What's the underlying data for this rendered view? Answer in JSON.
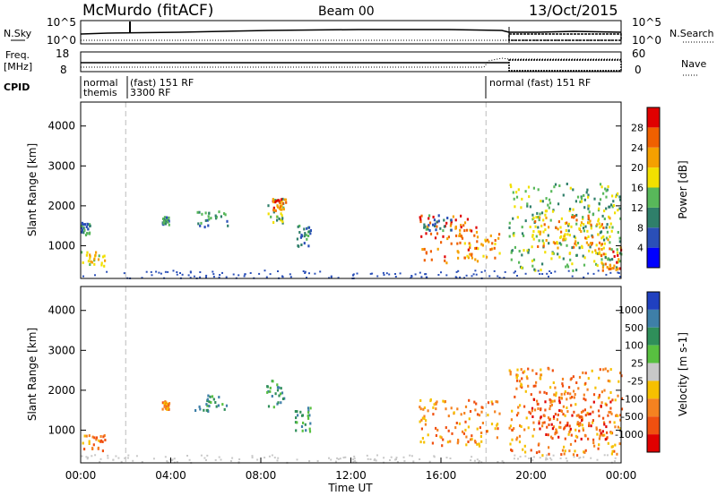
{
  "header": {
    "station": "McMurdo (fitACF)",
    "beam": "Beam 00",
    "date": "13/Oct/2015"
  },
  "left_labels": {
    "nsky": "N.Sky",
    "freq_line1": "Freq.",
    "freq_line2": "[MHz]",
    "cpid": "CPID"
  },
  "right_labels": {
    "nsearch": "N.Search",
    "nave": "Nave"
  },
  "noise_axis": {
    "left_top": "10^5",
    "left_bottom": "10^0",
    "right_top": "10^5",
    "right_bottom": "10^0"
  },
  "freq_axis": {
    "left_top": "18",
    "left_bottom": "8",
    "right_top": "60",
    "right_bottom": "0"
  },
  "cpid_labels": [
    {
      "text": "normal",
      "row": 1
    },
    {
      "text": "themis",
      "row": 2
    },
    {
      "text": "(fast) 151 RF",
      "row": 1
    },
    {
      "text": "3300 RF",
      "row": 2
    },
    {
      "text": "normal (fast) 151 RF",
      "row": 1
    }
  ],
  "chart_data": [
    {
      "type": "heatmap",
      "name": "power",
      "ylabel": "Slant Range [km]",
      "ylim": [
        180,
        4600
      ],
      "xlim": [
        "00:00",
        "24:00"
      ],
      "yticks": [
        "1000",
        "2000",
        "3000",
        "4000"
      ],
      "colorbar": {
        "label": "Power [dB]",
        "ticks": [
          "4",
          "8",
          "12",
          "16",
          "20",
          "24",
          "28"
        ],
        "colors": [
          "#0000ff",
          "#2a4fb8",
          "#2f7f6a",
          "#58b85a",
          "#f2e000",
          "#f5a000",
          "#f06000",
          "#e00000"
        ]
      },
      "echo_regions": [
        {
          "t0": 0.0,
          "t1": 1.1,
          "r0": 500,
          "r1": 900,
          "power": 18
        },
        {
          "t0": 0.0,
          "t1": 0.4,
          "r0": 1300,
          "r1": 1600,
          "power": 8
        },
        {
          "t0": 3.6,
          "t1": 3.9,
          "r0": 1550,
          "r1": 1750,
          "power": 8
        },
        {
          "t0": 5.0,
          "t1": 6.5,
          "r0": 1500,
          "r1": 1900,
          "power": 8
        },
        {
          "t0": 8.2,
          "t1": 9.0,
          "r0": 1600,
          "r1": 2300,
          "power": 12
        },
        {
          "t0": 8.5,
          "t1": 9.1,
          "r0": 1900,
          "r1": 2200,
          "power": 24
        },
        {
          "t0": 9.5,
          "t1": 10.2,
          "r0": 1000,
          "r1": 1600,
          "power": 8
        },
        {
          "t0": 15.0,
          "t1": 17.6,
          "r0": 600,
          "r1": 1800,
          "power": 26
        },
        {
          "t0": 15.2,
          "t1": 16.5,
          "r0": 1400,
          "r1": 1800,
          "power": 10
        },
        {
          "t0": 17.0,
          "t1": 18.6,
          "r0": 700,
          "r1": 1400,
          "power": 22
        },
        {
          "t0": 19.0,
          "t1": 24.0,
          "r0": 400,
          "r1": 2600,
          "power": 14
        },
        {
          "t0": 20.0,
          "t1": 23.5,
          "r0": 800,
          "r1": 1800,
          "power": 20
        },
        {
          "t0": 23.0,
          "t1": 24.0,
          "r0": 400,
          "r1": 1000,
          "power": 26
        }
      ]
    },
    {
      "type": "heatmap",
      "name": "velocity",
      "xlabel": "Time UT",
      "ylabel": "Slant Range [km]",
      "ylim": [
        180,
        4600
      ],
      "xlim": [
        "00:00",
        "24:00"
      ],
      "yticks": [
        "1000",
        "2000",
        "3000",
        "4000"
      ],
      "xticks": [
        "00:00",
        "04:00",
        "08:00",
        "12:00",
        "16:00",
        "20:00",
        "00:00"
      ],
      "colorbar": {
        "label": "Velocity [m s-1]",
        "ticks": [
          "1000",
          "500",
          "100",
          "25",
          "-25",
          "-100",
          "-500",
          "-1000"
        ],
        "colors": [
          "#2040c0",
          "#3e7fa8",
          "#2f8f5a",
          "#58c040",
          "#c8c8c8",
          "#f6c000",
          "#f58220",
          "#f05010",
          "#e00000"
        ]
      },
      "echo_regions": [
        {
          "t0": 0.0,
          "t1": 1.1,
          "r0": 500,
          "r1": 900,
          "velocity": -300
        },
        {
          "t0": 3.6,
          "t1": 3.9,
          "r0": 1550,
          "r1": 1750,
          "velocity": -200
        },
        {
          "t0": 5.0,
          "t1": 6.5,
          "r0": 1500,
          "r1": 1900,
          "velocity": 200
        },
        {
          "t0": 8.2,
          "t1": 9.0,
          "r0": 1600,
          "r1": 2300,
          "velocity": 300
        },
        {
          "t0": 9.5,
          "t1": 10.2,
          "r0": 1000,
          "r1": 1600,
          "velocity": 300
        },
        {
          "t0": 15.0,
          "t1": 18.6,
          "r0": 600,
          "r1": 1800,
          "velocity": -300
        },
        {
          "t0": 19.0,
          "t1": 24.0,
          "r0": 400,
          "r1": 2600,
          "velocity": -400
        },
        {
          "t0": 20.0,
          "t1": 23.5,
          "r0": 800,
          "r1": 1800,
          "velocity": -800
        }
      ]
    }
  ],
  "cpid_changes": [
    "00:00",
    "02:00",
    "18:00"
  ],
  "nave_change": "18:50"
}
